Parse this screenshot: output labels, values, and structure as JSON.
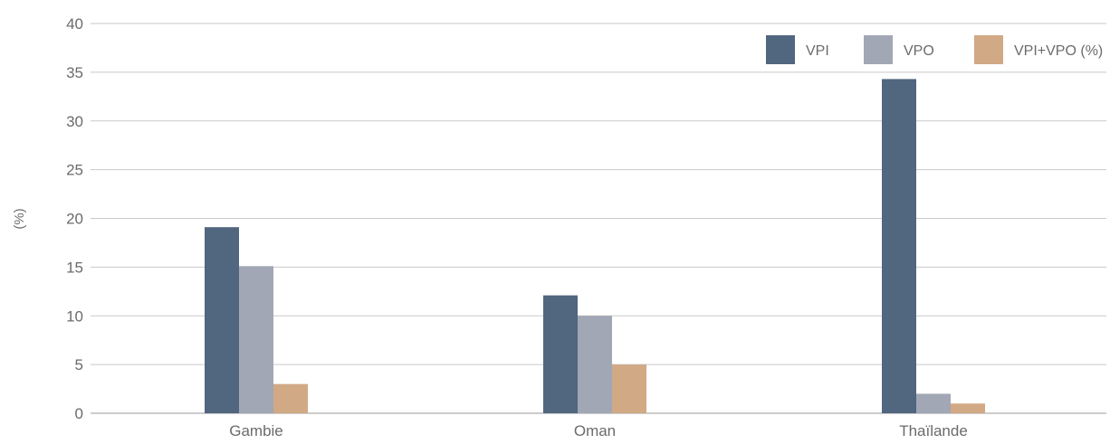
{
  "chart_data": {
    "type": "bar",
    "categories": [
      "Gambie",
      "Oman",
      "Thaïlande"
    ],
    "series": [
      {
        "name": "VPI",
        "values": [
          19.1,
          12.1,
          34.3
        ],
        "color": "#51667f"
      },
      {
        "name": "VPO",
        "values": [
          15.1,
          10.0,
          2.0
        ],
        "color": "#a1a7b5"
      },
      {
        "name": "VPI+VPO (%)",
        "values": [
          3.0,
          5.0,
          1.0
        ],
        "color": "#d1a985"
      }
    ],
    "title": "",
    "xlabel": "",
    "ylabel": "(%)",
    "ylim": [
      0,
      40
    ],
    "yticks": [
      0,
      5,
      10,
      15,
      20,
      25,
      30,
      35,
      40
    ],
    "grid": true,
    "legend_position": "top-right"
  }
}
